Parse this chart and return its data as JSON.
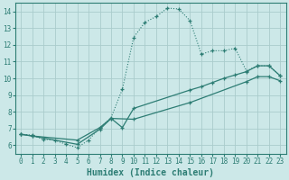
{
  "xlabel": "Humidex (Indice chaleur)",
  "xlim": [
    -0.5,
    23.5
  ],
  "ylim": [
    5.5,
    14.5
  ],
  "xticks": [
    0,
    1,
    2,
    3,
    4,
    5,
    6,
    7,
    8,
    9,
    10,
    11,
    12,
    13,
    14,
    15,
    16,
    17,
    18,
    19,
    20,
    21,
    22,
    23
  ],
  "yticks": [
    6,
    7,
    8,
    9,
    10,
    11,
    12,
    13,
    14
  ],
  "bg_color": "#cce8e8",
  "line_color": "#2d7d74",
  "grid_color": "#aacccc",
  "line1_x": [
    0,
    1,
    2,
    3,
    4,
    5,
    6,
    7,
    8,
    9,
    10,
    11,
    12,
    13,
    14,
    15,
    16,
    17,
    18,
    19,
    20,
    21,
    22,
    23
  ],
  "line1_y": [
    6.65,
    6.6,
    6.35,
    6.3,
    6.05,
    5.85,
    6.3,
    7.05,
    7.65,
    9.35,
    12.45,
    13.35,
    13.7,
    14.2,
    14.15,
    13.45,
    11.45,
    11.65,
    11.65,
    11.8,
    10.45,
    10.75,
    10.75,
    10.15
  ],
  "line2_x": [
    0,
    1,
    5,
    7,
    8,
    9,
    10,
    15,
    16,
    17,
    18,
    19,
    20,
    21,
    22,
    23
  ],
  "line2_y": [
    6.65,
    6.55,
    6.3,
    7.05,
    7.6,
    7.05,
    8.2,
    9.3,
    9.5,
    9.75,
    10.0,
    10.2,
    10.4,
    10.75,
    10.75,
    10.15
  ],
  "line3_x": [
    0,
    1,
    5,
    7,
    8,
    10,
    15,
    20,
    21,
    22,
    23
  ],
  "line3_y": [
    6.65,
    6.55,
    6.05,
    6.95,
    7.6,
    7.55,
    8.55,
    9.8,
    10.1,
    10.1,
    9.85
  ]
}
